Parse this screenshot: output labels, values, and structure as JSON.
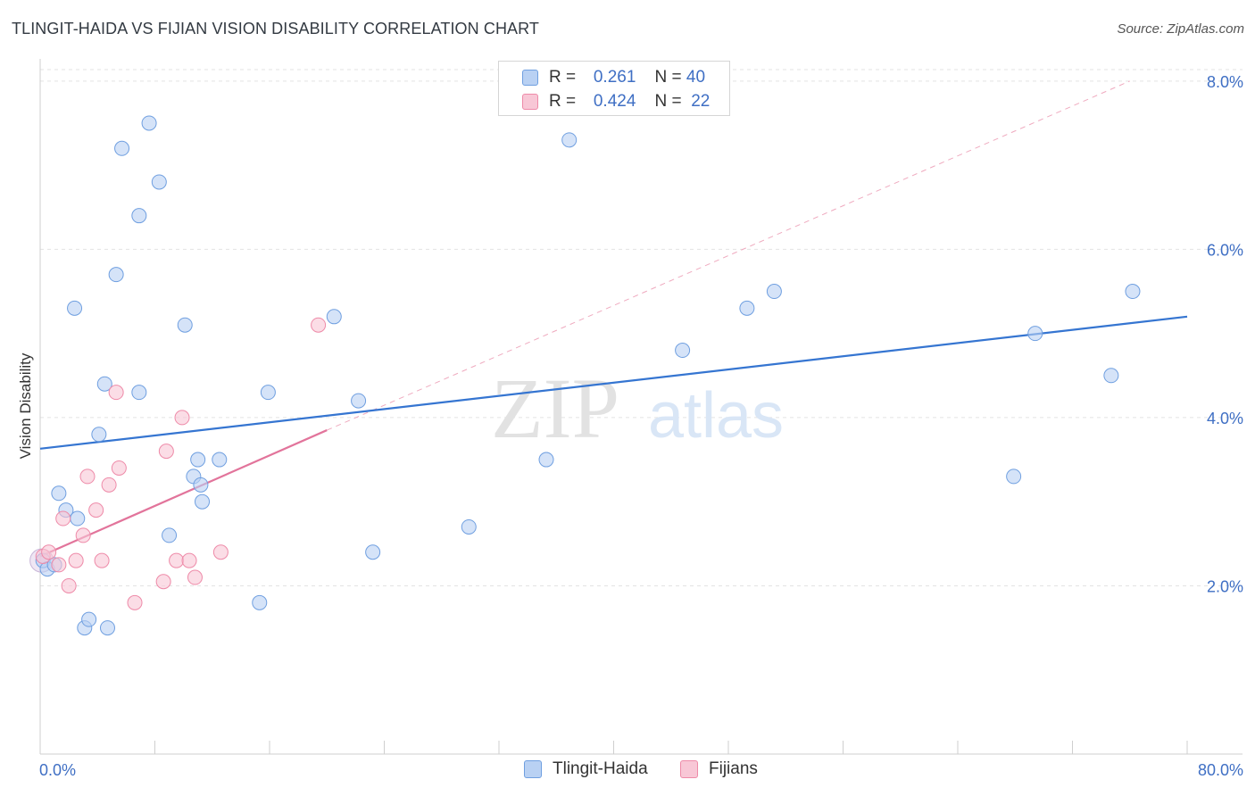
{
  "title": "TLINGIT-HAIDA VS FIJIAN VISION DISABILITY CORRELATION CHART",
  "source": "Source: ZipAtlas.com",
  "watermark": {
    "zip": "ZIP",
    "atlas": "atlas"
  },
  "legend": {
    "r_label": "R =",
    "n_label": "N =",
    "rows": [
      {
        "name": "Tlingit-Haida",
        "r": "0.261",
        "n": "40",
        "color": "#6f9fe0",
        "fill": "#b9d1f3"
      },
      {
        "name": "Fijians",
        "r": "0.424",
        "n": "22",
        "color": "#ee8aa8",
        "fill": "#f8c7d6"
      }
    ]
  },
  "colors": {
    "blue": "#3575d1",
    "pink": "#e2749b",
    "axis_text": "#3f6fc4",
    "grid": "#e3e3e3"
  },
  "chart_data": {
    "type": "scatter",
    "title": "TLINGIT-HAIDA VS FIJIAN VISION DISABILITY CORRELATION CHART",
    "xlabel": "",
    "ylabel": "Vision Disability",
    "xlim": [
      0,
      80
    ],
    "ylim": [
      0,
      8.2
    ],
    "x_tick_labels": [
      "0.0%",
      "80.0%"
    ],
    "y_ticks": [
      2,
      4,
      6,
      8
    ],
    "y_tick_labels": [
      "2.0%",
      "4.0%",
      "6.0%",
      "8.0%"
    ],
    "grid": true,
    "series": [
      {
        "name": "Tlingit-Haida",
        "color": "#6f9fe0",
        "points": [
          [
            0.2,
            2.3
          ],
          [
            0.5,
            2.2
          ],
          [
            1.0,
            2.25
          ],
          [
            1.3,
            3.1
          ],
          [
            1.8,
            2.9
          ],
          [
            2.4,
            5.3
          ],
          [
            2.6,
            2.8
          ],
          [
            3.1,
            1.5
          ],
          [
            3.4,
            1.6
          ],
          [
            4.1,
            3.8
          ],
          [
            4.5,
            4.4
          ],
          [
            4.7,
            1.5
          ],
          [
            5.3,
            5.7
          ],
          [
            5.7,
            7.2
          ],
          [
            6.9,
            6.4
          ],
          [
            6.9,
            4.3
          ],
          [
            7.6,
            7.5
          ],
          [
            8.3,
            6.8
          ],
          [
            9.0,
            2.6
          ],
          [
            10.1,
            5.1
          ],
          [
            10.7,
            3.3
          ],
          [
            11.0,
            3.5
          ],
          [
            11.2,
            3.2
          ],
          [
            11.3,
            3.0
          ],
          [
            12.5,
            3.5
          ],
          [
            15.3,
            1.8
          ],
          [
            15.9,
            4.3
          ],
          [
            20.5,
            5.2
          ],
          [
            22.2,
            4.2
          ],
          [
            23.2,
            2.4
          ],
          [
            29.9,
            2.7
          ],
          [
            35.3,
            3.5
          ],
          [
            36.9,
            7.3
          ],
          [
            44.8,
            4.8
          ],
          [
            49.3,
            5.3
          ],
          [
            51.2,
            5.5
          ],
          [
            67.9,
            3.3
          ],
          [
            69.4,
            5.0
          ],
          [
            74.7,
            4.5
          ],
          [
            76.2,
            5.5
          ]
        ],
        "trend": {
          "x0": 0,
          "y0": 3.63,
          "x1": 80,
          "y1": 5.2
        }
      },
      {
        "name": "Fijians",
        "color": "#ee8aa8",
        "points": [
          [
            0.2,
            2.35
          ],
          [
            0.6,
            2.4
          ],
          [
            1.3,
            2.25
          ],
          [
            1.6,
            2.8
          ],
          [
            2.0,
            2.0
          ],
          [
            2.5,
            2.3
          ],
          [
            3.0,
            2.6
          ],
          [
            3.3,
            3.3
          ],
          [
            3.9,
            2.9
          ],
          [
            4.3,
            2.3
          ],
          [
            4.8,
            3.2
          ],
          [
            5.3,
            4.3
          ],
          [
            5.5,
            3.4
          ],
          [
            6.6,
            1.8
          ],
          [
            8.6,
            2.05
          ],
          [
            8.8,
            3.6
          ],
          [
            9.5,
            2.3
          ],
          [
            9.9,
            4.0
          ],
          [
            10.4,
            2.3
          ],
          [
            10.8,
            2.1
          ],
          [
            12.6,
            2.4
          ],
          [
            19.4,
            5.1
          ]
        ],
        "trend": {
          "x0": 0,
          "y0": 2.35,
          "x1": 20,
          "y1": 3.85
        },
        "trend_extension": {
          "x0": 20,
          "y0": 3.85,
          "x1": 76,
          "y1": 8.0
        }
      }
    ]
  }
}
